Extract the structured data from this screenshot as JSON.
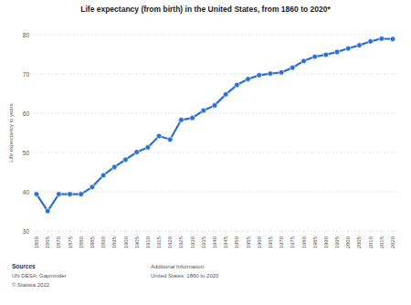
{
  "chart_data": {
    "type": "line",
    "title": "Life expectancy (from birth) in the United States, from 1860 to 2020*",
    "y_label": "Life expectancy in years",
    "x": [
      1860,
      1865,
      1870,
      1875,
      1880,
      1885,
      1890,
      1895,
      1900,
      1905,
      1910,
      1915,
      1920,
      1925,
      1930,
      1935,
      1940,
      1945,
      1950,
      1955,
      1960,
      1965,
      1970,
      1975,
      1980,
      1985,
      1990,
      1995,
      2000,
      2005,
      2010,
      2015,
      2020
    ],
    "values": [
      39.4,
      35.1,
      39.4,
      39.4,
      39.4,
      41.2,
      44.2,
      46.3,
      48.2,
      50.1,
      51.3,
      54.2,
      53.3,
      58.3,
      58.8,
      60.7,
      62.0,
      64.8,
      67.2,
      68.7,
      69.7,
      70.1,
      70.4,
      71.6,
      73.3,
      74.4,
      74.9,
      75.6,
      76.5,
      77.3,
      78.3,
      79.0,
      78.9
    ],
    "color": "#2a6ed8",
    "marker": "circle",
    "xlim": [
      1860,
      2020
    ],
    "xticks": [
      1860,
      1865,
      1870,
      1875,
      1880,
      1885,
      1890,
      1895,
      1900,
      1905,
      1910,
      1915,
      1920,
      1925,
      1930,
      1935,
      1940,
      1945,
      1950,
      1955,
      1960,
      1965,
      1970,
      1975,
      1980,
      1985,
      1990,
      1995,
      2000,
      2005,
      2010,
      2015,
      2020
    ],
    "ylim": [
      30,
      80
    ],
    "yticks": [
      30,
      40,
      50,
      60,
      70,
      80
    ],
    "grid": true,
    "footer": {
      "sources_heading": "Sources",
      "sources": "UN DESA; Gapminder",
      "copyright": "© Statista 2022",
      "info_heading": "Additional Information:",
      "info": "United States; 1860 to 2020"
    }
  }
}
